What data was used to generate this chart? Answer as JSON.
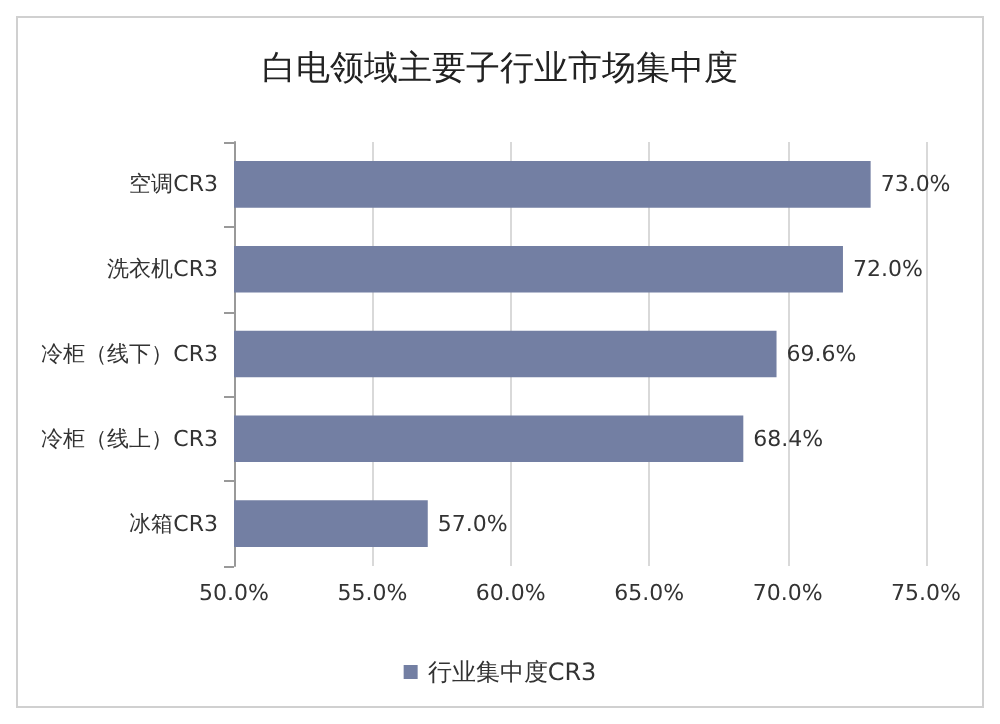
{
  "chart_data": {
    "type": "bar",
    "orientation": "horizontal",
    "title": "白电领域主要子行业市场集中度",
    "categories": [
      "空调CR3",
      "洗衣机CR3",
      "冷柜（线下）CR3",
      "冷柜（线上）CR3",
      "冰箱CR3"
    ],
    "series": [
      {
        "name": "行业集中度CR3",
        "color": "#737fa3",
        "values": [
          73.0,
          72.0,
          69.6,
          68.4,
          57.0
        ]
      }
    ],
    "value_labels": [
      "73.0%",
      "72.0%",
      "69.6%",
      "68.4%",
      "57.0%"
    ],
    "xlim": [
      50,
      75
    ],
    "xticks": [
      {
        "value": 50,
        "label": "50.0%"
      },
      {
        "value": 55,
        "label": "55.0%"
      },
      {
        "value": 60,
        "label": "60.0%"
      },
      {
        "value": 65,
        "label": "65.0%"
      },
      {
        "value": 70,
        "label": "70.0%"
      },
      {
        "value": 75,
        "label": "75.0%"
      }
    ],
    "grid": "x",
    "legend": "bottom"
  }
}
